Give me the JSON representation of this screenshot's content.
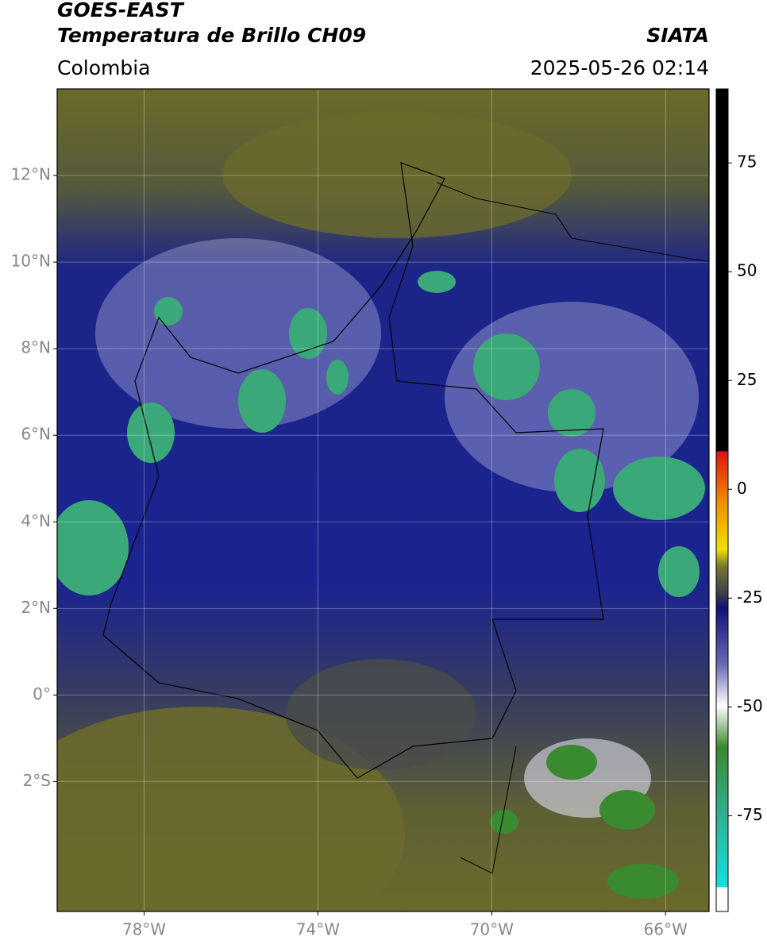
{
  "header": {
    "title": "GOES-EAST",
    "subtitle": "Temperatura de Brillo CH09",
    "source": "SIATA",
    "region": "Colombia",
    "datetime": "2025-05-26 02:14"
  },
  "map": {
    "xlim": [
      -80,
      -65
    ],
    "ylim": [
      -5,
      14
    ],
    "grid": true,
    "xticks": [
      {
        "value": -78,
        "label": "78°W"
      },
      {
        "value": -74,
        "label": "74°W"
      },
      {
        "value": -70,
        "label": "70°W"
      },
      {
        "value": -66,
        "label": "66°W"
      }
    ],
    "yticks": [
      {
        "value": 12,
        "label": "12°N"
      },
      {
        "value": 10,
        "label": "10°N"
      },
      {
        "value": 8,
        "label": "8°N"
      },
      {
        "value": 6,
        "label": "6°N"
      },
      {
        "value": 4,
        "label": "4°N"
      },
      {
        "value": 2,
        "label": "2°N"
      },
      {
        "value": 0,
        "label": "0°"
      },
      {
        "value": -2,
        "label": "2°S"
      }
    ]
  },
  "colorbar": {
    "lim": [
      -97,
      92
    ],
    "ticks": [
      75,
      50,
      25,
      0,
      -25,
      -50,
      -75
    ]
  }
}
